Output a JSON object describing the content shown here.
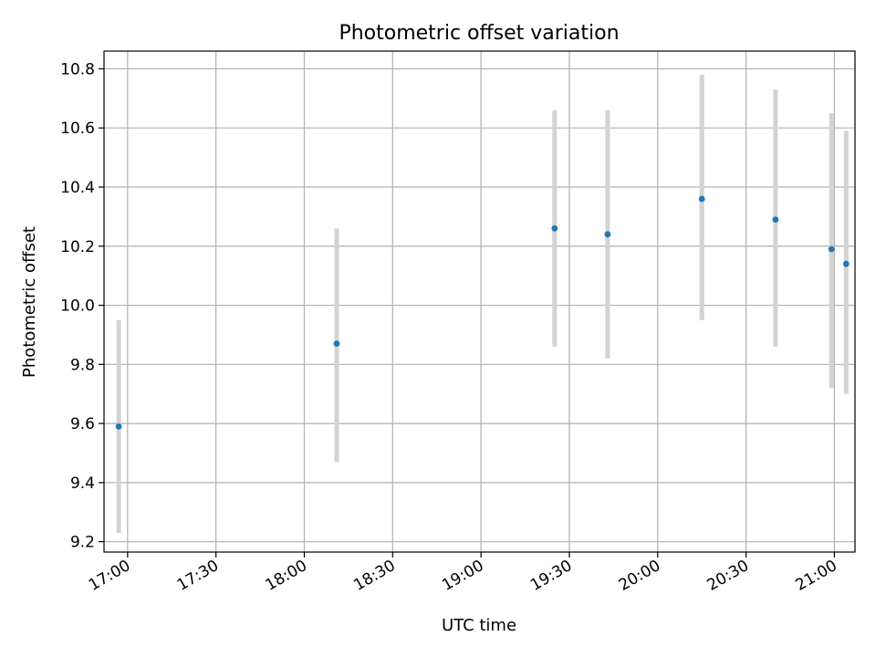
{
  "chart_data": {
    "type": "scatter",
    "title": "Photometric offset variation",
    "xlabel": "UTC time",
    "ylabel": "Photometric offset",
    "x_ticks": [
      "17:00",
      "17:30",
      "18:00",
      "18:30",
      "19:00",
      "19:30",
      "20:00",
      "20:30",
      "21:00"
    ],
    "y_ticks": [
      "9.2",
      "9.4",
      "9.6",
      "9.8",
      "10.0",
      "10.2",
      "10.4",
      "10.6",
      "10.8"
    ],
    "xlim": [
      "16:52",
      "21:07"
    ],
    "ylim": [
      9.165,
      10.86
    ],
    "grid": true,
    "series": [
      {
        "x": [
          "16:57",
          "18:11",
          "19:25",
          "19:43",
          "20:15",
          "20:40",
          "20:59",
          "21:04"
        ],
        "y": [
          9.59,
          9.87,
          10.26,
          10.24,
          10.36,
          10.29,
          10.19,
          10.14
        ],
        "y_low": [
          9.23,
          9.47,
          9.86,
          9.82,
          9.95,
          9.86,
          9.72,
          9.7
        ],
        "y_high": [
          9.95,
          10.26,
          10.66,
          10.66,
          10.78,
          10.73,
          10.65,
          10.59
        ]
      }
    ],
    "colors": {
      "point": "#1f77b4",
      "errorbar": "#d3d3d3",
      "grid": "#b0b0b0"
    }
  }
}
